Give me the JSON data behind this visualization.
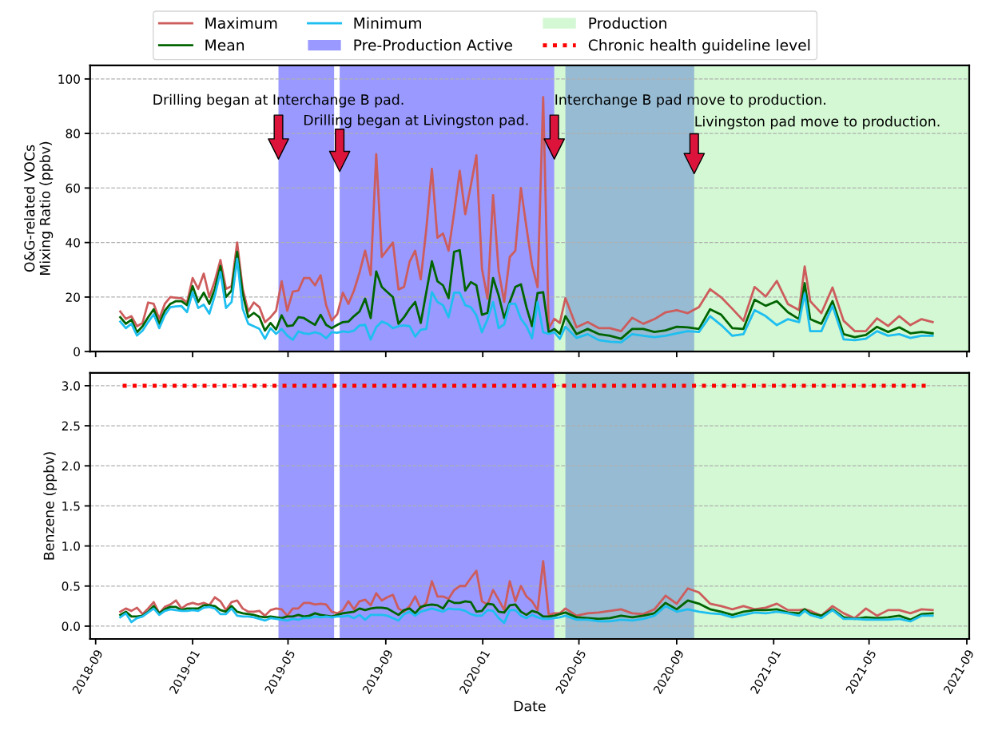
{
  "chart_data": [
    {
      "type": "line",
      "ylabel": "O&G-related VOCs\nMixing Ratio (ppbv)",
      "xlim": [
        "2018-08-25",
        "2021-09-04"
      ],
      "ylim": [
        0,
        105
      ],
      "xticks": [
        "2018-09",
        "2019-01",
        "2019-05",
        "2019-09",
        "2020-01",
        "2020-05",
        "2020-09",
        "2021-01",
        "2021-05",
        "2021-09"
      ],
      "yticks": [
        0,
        20,
        40,
        60,
        80,
        100
      ],
      "tick_labels": "y",
      "grid": "y",
      "legend": "top",
      "x": [
        "2018-10-02",
        "2018-10-09",
        "2018-10-16",
        "2018-10-23",
        "2018-10-30",
        "2018-11-06",
        "2018-11-13",
        "2018-11-20",
        "2018-11-27",
        "2018-12-04",
        "2018-12-11",
        "2018-12-18",
        "2018-12-25",
        "2019-01-01",
        "2019-01-08",
        "2019-01-15",
        "2019-01-22",
        "2019-01-29",
        "2019-02-05",
        "2019-02-12",
        "2019-02-19",
        "2019-02-26",
        "2019-03-05",
        "2019-03-12",
        "2019-03-19",
        "2019-03-26",
        "2019-04-02",
        "2019-04-09",
        "2019-04-16",
        "2019-04-23",
        "2019-04-30",
        "2019-05-07",
        "2019-05-14",
        "2019-05-21",
        "2019-05-28",
        "2019-06-04",
        "2019-06-11",
        "2019-06-18",
        "2019-06-25",
        "2019-07-02",
        "2019-07-09",
        "2019-07-16",
        "2019-07-23",
        "2019-07-30",
        "2019-08-06",
        "2019-08-13",
        "2019-08-20",
        "2019-08-27",
        "2019-09-03",
        "2019-09-10",
        "2019-09-17",
        "2019-09-24",
        "2019-10-01",
        "2019-10-08",
        "2019-10-15",
        "2019-10-22",
        "2019-10-29",
        "2019-11-05",
        "2019-11-12",
        "2019-11-19",
        "2019-11-26",
        "2019-12-03",
        "2019-12-10",
        "2019-12-17",
        "2019-12-24",
        "2019-12-31",
        "2020-01-07",
        "2020-01-14",
        "2020-01-21",
        "2020-01-28",
        "2020-02-04",
        "2020-02-11",
        "2020-02-18",
        "2020-02-25",
        "2020-03-03",
        "2020-03-10",
        "2020-03-17",
        "2020-03-24",
        "2020-03-31",
        "2020-04-07",
        "2020-04-14",
        "2020-04-28",
        "2020-05-12",
        "2020-05-26",
        "2020-06-09",
        "2020-06-23",
        "2020-07-07",
        "2020-07-21",
        "2020-08-04",
        "2020-08-18",
        "2020-09-01",
        "2020-09-15",
        "2020-09-29",
        "2020-10-13",
        "2020-10-27",
        "2020-11-10",
        "2020-11-24",
        "2020-12-08",
        "2020-12-22",
        "2021-01-05",
        "2021-01-19",
        "2021-02-02",
        "2021-02-09",
        "2021-02-16",
        "2021-03-02",
        "2021-03-16",
        "2021-03-30",
        "2021-04-13",
        "2021-04-27",
        "2021-05-11",
        "2021-05-25",
        "2021-06-08",
        "2021-06-22",
        "2021-07-06",
        "2021-07-20"
      ],
      "series": [
        {
          "name": "Maximum",
          "color": "#cd5c5c",
          "values": [
            14.7,
            12,
            13,
            9.3,
            10.5,
            18,
            17.5,
            12,
            17.5,
            20,
            19.7,
            19.6,
            18,
            27,
            23,
            28.6,
            20,
            26,
            33.6,
            23,
            24,
            40,
            23,
            14.7,
            18,
            16.3,
            10.8,
            12.6,
            15,
            25.8,
            15,
            22,
            22.4,
            27,
            27,
            24.3,
            28,
            17,
            11.4,
            13.7,
            21.6,
            17.5,
            22.4,
            29,
            37,
            28,
            72.4,
            34.7,
            37.4,
            40,
            22.8,
            23.7,
            33,
            37,
            26.5,
            45,
            67,
            41.8,
            43.3,
            37,
            51,
            66.3,
            50.4,
            60.9,
            72,
            30.4,
            19.4,
            57.4,
            29.6,
            18.2,
            34.7,
            37,
            60,
            45.6,
            31.7,
            23.6,
            93.3,
            8.6,
            12,
            10.5,
            19.6,
            8.9,
            10.8,
            8.6,
            8.6,
            7.5,
            12.4,
            10.2,
            11.9,
            14.4,
            15.2,
            14.1,
            16.3,
            22.9,
            19.9,
            15.7,
            11.3,
            23.7,
            20.2,
            25.9,
            17.4,
            15.2,
            31.2,
            18.5,
            14.1,
            23.5,
            11.3,
            7.5,
            7.5,
            12.2,
            9.4,
            13,
            9.7,
            11.9,
            10.8
          ]
        },
        {
          "name": "Mean",
          "color": "#006400",
          "values": [
            12.6,
            10.2,
            11.7,
            7.1,
            9.3,
            12.6,
            15.5,
            10.2,
            15,
            17.5,
            18.5,
            18.5,
            17,
            24,
            18.2,
            21.6,
            17.5,
            23,
            31.4,
            20,
            22.4,
            36.6,
            21.2,
            12.6,
            14.2,
            12.6,
            7.7,
            10.5,
            8.1,
            13.3,
            9.3,
            9.6,
            12.6,
            12.3,
            11,
            9.8,
            13.5,
            9.8,
            8.6,
            9.8,
            10.8,
            11,
            13,
            14.7,
            19.4,
            12.3,
            29.4,
            23.7,
            21.8,
            20,
            10.2,
            12.6,
            15.7,
            18.2,
            10.5,
            21.8,
            33.1,
            25.8,
            24.3,
            19.6,
            36.6,
            37.2,
            22.4,
            25.5,
            24.3,
            13.5,
            14.2,
            27,
            20.6,
            12.3,
            18.2,
            23.7,
            24.7,
            16.3,
            9.3,
            21.5,
            21.8,
            7.1,
            8.3,
            6.5,
            13,
            6.4,
            8.3,
            6.4,
            5.8,
            4.7,
            8.3,
            8.3,
            7.2,
            7.8,
            9.1,
            8.9,
            8.3,
            15.5,
            13.5,
            8.6,
            8.3,
            19,
            16.8,
            18.5,
            14.4,
            11.9,
            25.1,
            11.9,
            10.2,
            18.5,
            6.4,
            5.3,
            6.1,
            9.1,
            7.2,
            8.9,
            6.7,
            7.2,
            6.7
          ]
        },
        {
          "name": "Minimum",
          "color": "#1ebff0",
          "values": [
            11,
            8.6,
            10.2,
            5.9,
            7.7,
            10.8,
            13.7,
            8.6,
            13.3,
            16.3,
            16.6,
            16.7,
            14.5,
            21.8,
            16,
            17.2,
            13.9,
            20.6,
            29.2,
            16,
            18.2,
            34.1,
            15.7,
            10.2,
            9.3,
            8.3,
            4.7,
            8.6,
            6.5,
            8.3,
            5.9,
            4.3,
            7.4,
            6.7,
            6.5,
            7.1,
            6.5,
            4.9,
            7.1,
            6.9,
            7.4,
            7.1,
            7.7,
            9.6,
            9.8,
            4.4,
            9,
            11,
            10.2,
            8.6,
            9.3,
            9.6,
            9.3,
            5.5,
            8,
            8.3,
            21.8,
            18.2,
            17,
            12.6,
            21.6,
            21.6,
            17,
            16.3,
            13.3,
            7.1,
            11.8,
            18.2,
            8.6,
            10,
            17.5,
            17.5,
            12,
            9.3,
            4.9,
            18.2,
            7.1,
            6.5,
            7.1,
            4.7,
            9.1,
            5,
            6.4,
            4.2,
            3.6,
            3.4,
            6.4,
            5.8,
            5.3,
            5.8,
            6.7,
            7.5,
            7.2,
            13,
            9.7,
            5.8,
            6.4,
            15.2,
            13,
            9.7,
            11.9,
            10.8,
            21.3,
            7.5,
            7.5,
            16.8,
            4.5,
            4.2,
            4.7,
            7.5,
            5.8,
            6.4,
            5,
            5.8,
            5.8
          ]
        }
      ],
      "bands": [
        {
          "axis": "x",
          "from": "2019-04-19",
          "to": "2019-06-28",
          "label": "Pre-Production Active",
          "color": "#0000ff"
        },
        {
          "axis": "x",
          "from": "2019-07-05",
          "to": "2020-03-31",
          "color": "#0000ff"
        },
        {
          "axis": "x",
          "from": "2020-04-14",
          "to": "2020-09-23",
          "color": "#0000ff"
        },
        {
          "axis": "x",
          "from": "2020-03-31",
          "to": "2021-09-04",
          "label": "Production",
          "color": "#90ee90"
        }
      ],
      "annotations": [
        {
          "text": "Drilling began at Interchange B pad.",
          "x": "2019-04-19",
          "y": 92
        },
        {
          "text": "Drilling began at Livingston pad.",
          "x": "2019-07-05",
          "y": 84.5
        },
        {
          "text": "Interchange B pad move to production.",
          "x": "2020-03-31",
          "y": 92
        },
        {
          "text": "Livingston pad move to production.",
          "x": "2020-09-23",
          "y": 84
        }
      ]
    },
    {
      "type": "line",
      "xlabel": "Date",
      "ylabel": "Benzene (ppbv)",
      "xlim": [
        "2018-08-25",
        "2021-09-04"
      ],
      "ylim": [
        -0.16,
        3.16
      ],
      "xticks": [
        "2018-09",
        "2019-01",
        "2019-05",
        "2019-09",
        "2020-01",
        "2020-05",
        "2020-09",
        "2021-01",
        "2021-05",
        "2021-09"
      ],
      "yticks": [
        {
          "value": 0,
          "label": "0.0"
        },
        {
          "value": 0.5,
          "label": "0.5"
        },
        {
          "value": 1,
          "label": "1.0"
        },
        {
          "value": 1.5,
          "label": "1.5"
        },
        {
          "value": 2,
          "label": "2.0"
        },
        {
          "value": 2.5,
          "label": "2.5"
        },
        {
          "value": 3,
          "label": "3.0"
        }
      ],
      "grid": "y",
      "x": [
        "2018-10-02",
        "2018-10-09",
        "2018-10-16",
        "2018-10-23",
        "2018-10-30",
        "2018-11-06",
        "2018-11-13",
        "2018-11-20",
        "2018-11-27",
        "2018-12-04",
        "2018-12-11",
        "2018-12-18",
        "2018-12-25",
        "2019-01-01",
        "2019-01-08",
        "2019-01-15",
        "2019-01-22",
        "2019-01-29",
        "2019-02-05",
        "2019-02-12",
        "2019-02-19",
        "2019-02-26",
        "2019-03-05",
        "2019-03-12",
        "2019-03-19",
        "2019-03-26",
        "2019-04-02",
        "2019-04-09",
        "2019-04-16",
        "2019-04-23",
        "2019-04-30",
        "2019-05-07",
        "2019-05-14",
        "2019-05-21",
        "2019-05-28",
        "2019-06-04",
        "2019-06-11",
        "2019-06-18",
        "2019-06-25",
        "2019-07-02",
        "2019-07-09",
        "2019-07-16",
        "2019-07-23",
        "2019-07-30",
        "2019-08-06",
        "2019-08-13",
        "2019-08-20",
        "2019-08-27",
        "2019-09-03",
        "2019-09-10",
        "2019-09-17",
        "2019-09-24",
        "2019-10-01",
        "2019-10-08",
        "2019-10-15",
        "2019-10-22",
        "2019-10-29",
        "2019-11-05",
        "2019-11-12",
        "2019-11-19",
        "2019-11-26",
        "2019-12-03",
        "2019-12-10",
        "2019-12-17",
        "2019-12-24",
        "2019-12-31",
        "2020-01-07",
        "2020-01-14",
        "2020-01-21",
        "2020-01-28",
        "2020-02-04",
        "2020-02-11",
        "2020-02-18",
        "2020-02-25",
        "2020-03-03",
        "2020-03-10",
        "2020-03-17",
        "2020-03-24",
        "2020-03-31",
        "2020-04-07",
        "2020-04-14",
        "2020-04-28",
        "2020-05-12",
        "2020-05-26",
        "2020-06-09",
        "2020-06-23",
        "2020-07-07",
        "2020-07-21",
        "2020-08-04",
        "2020-08-18",
        "2020-09-01",
        "2020-09-15",
        "2020-09-29",
        "2020-10-13",
        "2020-10-27",
        "2020-11-10",
        "2020-11-24",
        "2020-12-08",
        "2020-12-22",
        "2021-01-05",
        "2021-01-19",
        "2021-02-02",
        "2021-02-09",
        "2021-02-16",
        "2021-03-02",
        "2021-03-16",
        "2021-03-30",
        "2021-04-13",
        "2021-04-27",
        "2021-05-11",
        "2021-05-25",
        "2021-06-08",
        "2021-06-22",
        "2021-07-06",
        "2021-07-20"
      ],
      "series": [
        {
          "name": "Maximum",
          "color": "#cd5c5c",
          "values": [
            0.18,
            0.22,
            0.19,
            0.23,
            0.15,
            0.22,
            0.3,
            0.16,
            0.24,
            0.27,
            0.32,
            0.22,
            0.27,
            0.29,
            0.27,
            0.29,
            0.26,
            0.36,
            0.31,
            0.2,
            0.3,
            0.32,
            0.22,
            0.18,
            0.18,
            0.19,
            0.13,
            0.2,
            0.22,
            0.21,
            0.13,
            0.22,
            0.22,
            0.29,
            0.29,
            0.27,
            0.28,
            0.27,
            0.18,
            0.16,
            0.2,
            0.31,
            0.21,
            0.31,
            0.33,
            0.26,
            0.41,
            0.32,
            0.36,
            0.39,
            0.22,
            0.18,
            0.25,
            0.37,
            0.22,
            0.29,
            0.56,
            0.37,
            0.37,
            0.34,
            0.45,
            0.5,
            0.5,
            0.6,
            0.69,
            0.31,
            0.27,
            0.45,
            0.33,
            0.2,
            0.56,
            0.31,
            0.5,
            0.37,
            0.31,
            0.2,
            0.81,
            0.14,
            0.16,
            0.16,
            0.22,
            0.13,
            0.16,
            0.17,
            0.19,
            0.21,
            0.16,
            0.15,
            0.21,
            0.38,
            0.28,
            0.47,
            0.42,
            0.28,
            0.25,
            0.21,
            0.25,
            0.21,
            0.23,
            0.28,
            0.2,
            0.2,
            0.21,
            0.19,
            0.13,
            0.25,
            0.16,
            0.1,
            0.22,
            0.13,
            0.2,
            0.2,
            0.16,
            0.21,
            0.2
          ]
        },
        {
          "name": "Mean",
          "color": "#006400",
          "values": [
            0.14,
            0.18,
            0.12,
            0.12,
            0.13,
            0.18,
            0.25,
            0.16,
            0.21,
            0.24,
            0.24,
            0.2,
            0.22,
            0.22,
            0.22,
            0.26,
            0.26,
            0.25,
            0.2,
            0.18,
            0.25,
            0.18,
            0.16,
            0.15,
            0.14,
            0.12,
            0.11,
            0.12,
            0.11,
            0.1,
            0.12,
            0.12,
            0.14,
            0.12,
            0.13,
            0.16,
            0.14,
            0.13,
            0.12,
            0.14,
            0.16,
            0.17,
            0.18,
            0.22,
            0.2,
            0.22,
            0.23,
            0.23,
            0.22,
            0.18,
            0.14,
            0.2,
            0.22,
            0.16,
            0.24,
            0.26,
            0.27,
            0.26,
            0.22,
            0.32,
            0.29,
            0.29,
            0.31,
            0.3,
            0.18,
            0.19,
            0.28,
            0.27,
            0.18,
            0.17,
            0.26,
            0.27,
            0.18,
            0.14,
            0.19,
            0.17,
            0.12,
            0.12,
            0.13,
            0.15,
            0.17,
            0.11,
            0.1,
            0.09,
            0.1,
            0.13,
            0.11,
            0.13,
            0.16,
            0.29,
            0.21,
            0.32,
            0.28,
            0.21,
            0.18,
            0.14,
            0.18,
            0.2,
            0.2,
            0.21,
            0.17,
            0.16,
            0.21,
            0.16,
            0.13,
            0.21,
            0.11,
            0.09,
            0.11,
            0.1,
            0.11,
            0.13,
            0.08,
            0.15,
            0.16
          ]
        },
        {
          "name": "Minimum",
          "color": "#1ebff0",
          "values": [
            0.11,
            0.16,
            0.05,
            0.1,
            0.12,
            0.17,
            0.22,
            0.14,
            0.19,
            0.21,
            0.2,
            0.19,
            0.19,
            0.2,
            0.19,
            0.23,
            0.24,
            0.22,
            0.15,
            0.15,
            0.22,
            0.13,
            0.12,
            0.12,
            0.11,
            0.09,
            0.07,
            0.1,
            0.09,
            0.08,
            0.07,
            0.09,
            0.08,
            0.1,
            0.1,
            0.12,
            0.11,
            0.12,
            0.11,
            0.12,
            0.12,
            0.13,
            0.1,
            0.14,
            0.08,
            0.14,
            0.14,
            0.14,
            0.13,
            0.1,
            0.07,
            0.15,
            0.18,
            0.13,
            0.18,
            0.2,
            0.22,
            0.2,
            0.18,
            0.22,
            0.21,
            0.21,
            0.19,
            0.15,
            0.13,
            0.13,
            0.2,
            0.19,
            0.1,
            0.04,
            0.2,
            0.2,
            0.13,
            0.1,
            0.14,
            0.11,
            0.09,
            0.09,
            0.1,
            0.11,
            0.13,
            0.08,
            0.08,
            0.06,
            0.06,
            0.08,
            0.07,
            0.09,
            0.13,
            0.25,
            0.18,
            0.21,
            0.18,
            0.16,
            0.15,
            0.11,
            0.14,
            0.17,
            0.16,
            0.18,
            0.16,
            0.13,
            0.19,
            0.14,
            0.1,
            0.2,
            0.09,
            0.09,
            0.08,
            0.08,
            0.08,
            0.09,
            0.06,
            0.13,
            0.13
          ]
        },
        {
          "name": "Chronic health guideline level",
          "color": "#ff0000",
          "line_style": "dotted",
          "x": [
            "2018-10-05",
            "2021-07-15"
          ],
          "values": [
            3,
            3
          ]
        }
      ],
      "bands": [
        {
          "axis": "x",
          "from": "2019-04-19",
          "to": "2019-06-28",
          "color": "#0000ff"
        },
        {
          "axis": "x",
          "from": "2019-07-05",
          "to": "2020-03-31",
          "color": "#0000ff"
        },
        {
          "axis": "x",
          "from": "2020-04-14",
          "to": "2020-09-23",
          "color": "#0000ff"
        },
        {
          "axis": "x",
          "from": "2020-03-31",
          "to": "2021-09-04",
          "color": "#90ee90"
        }
      ]
    }
  ]
}
